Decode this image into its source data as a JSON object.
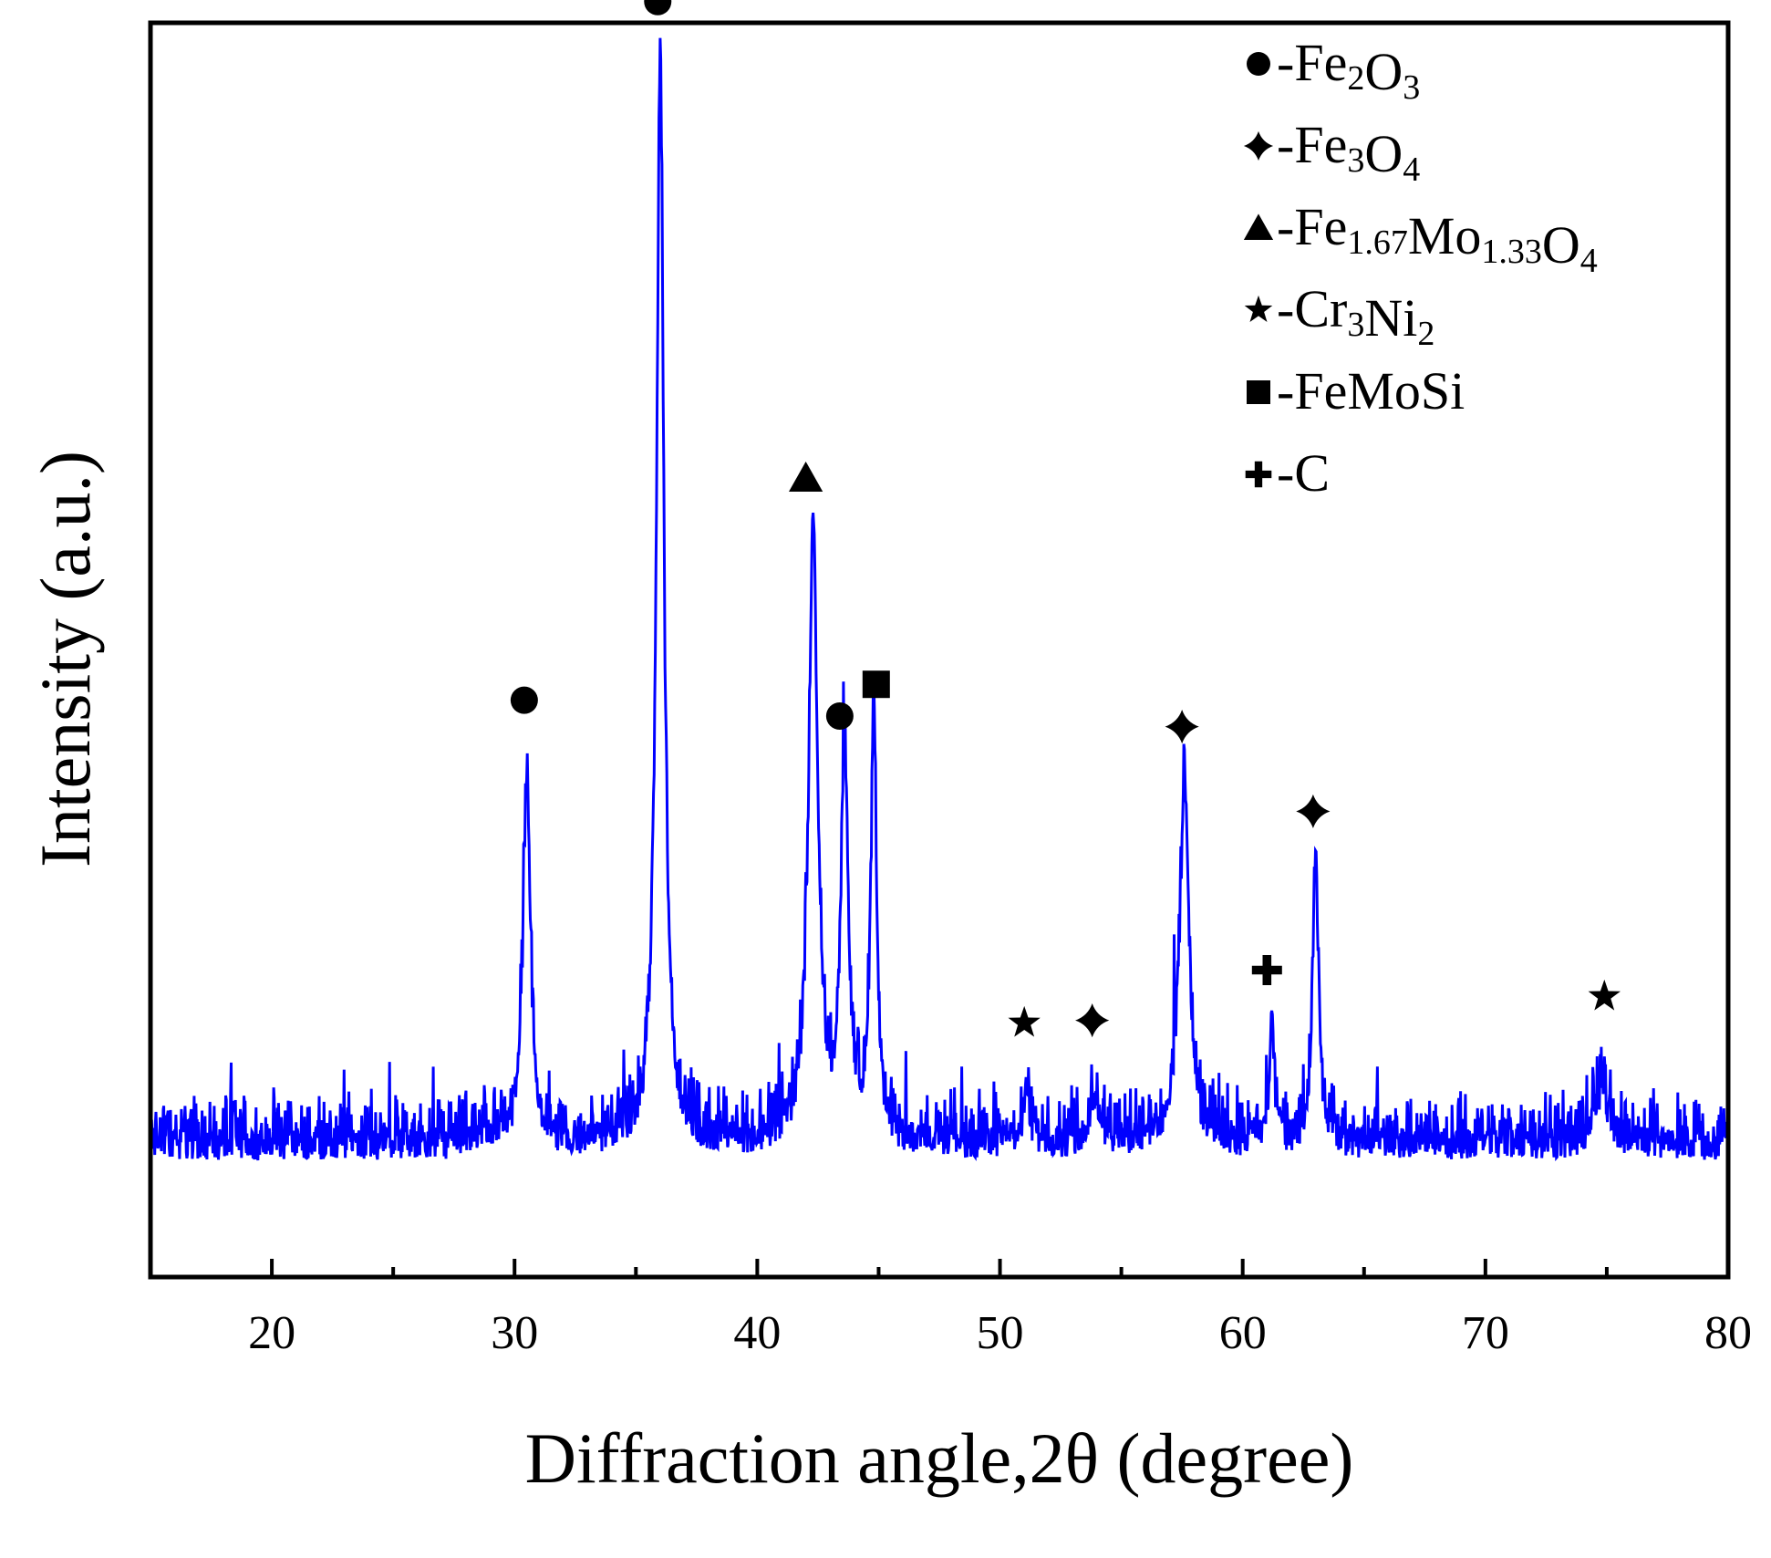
{
  "chart_data": {
    "type": "line",
    "title": "",
    "xlabel": "Diffraction angle,2θ (degree)",
    "ylabel": "Intensity (a.u.)",
    "xlim": [
      15,
      80
    ],
    "ylim": [
      -22,
      215
    ],
    "x_ticks": [
      20,
      30,
      40,
      50,
      60,
      70,
      80
    ],
    "y_ticks": [],
    "grid": false,
    "series_color": "#0000ff",
    "baseline": 10,
    "peaks": [
      {
        "x": 30.5,
        "y": 70,
        "w": 0.18
      },
      {
        "x": 36.0,
        "y": 206,
        "w": 0.18
      },
      {
        "x": 42.3,
        "y": 115,
        "w": 0.22
      },
      {
        "x": 43.6,
        "y": 72,
        "w": 0.18
      },
      {
        "x": 44.8,
        "y": 78,
        "w": 0.15
      },
      {
        "x": 51.1,
        "y": 8,
        "w": 0.15
      },
      {
        "x": 53.9,
        "y": 9,
        "w": 0.25
      },
      {
        "x": 57.6,
        "y": 70,
        "w": 0.22
      },
      {
        "x": 61.2,
        "y": 22,
        "w": 0.12
      },
      {
        "x": 63.0,
        "y": 54,
        "w": 0.15
      },
      {
        "x": 74.8,
        "y": 10,
        "w": 0.35
      }
    ],
    "annotations": [
      {
        "x": 30.4,
        "y": 87,
        "symbol": "circle"
      },
      {
        "x": 35.9,
        "y": 219,
        "symbol": "circle"
      },
      {
        "x": 42.0,
        "y": 129,
        "symbol": "triangle"
      },
      {
        "x": 43.4,
        "y": 84,
        "symbol": "circle"
      },
      {
        "x": 44.9,
        "y": 90,
        "symbol": "square"
      },
      {
        "x": 51.0,
        "y": 26,
        "symbol": "star"
      },
      {
        "x": 53.8,
        "y": 26.5,
        "symbol": "diamond"
      },
      {
        "x": 57.5,
        "y": 82,
        "symbol": "diamond"
      },
      {
        "x": 61.0,
        "y": 36,
        "symbol": "cross"
      },
      {
        "x": 62.9,
        "y": 66,
        "symbol": "diamond"
      },
      {
        "x": 74.9,
        "y": 31,
        "symbol": "star"
      }
    ],
    "legend_position": "top-right",
    "legend": [
      {
        "symbol": "circle",
        "prefix": "-",
        "parts": [
          {
            "t": "Fe",
            "s": false
          },
          {
            "t": "2",
            "s": true
          },
          {
            "t": "O",
            "s": false
          },
          {
            "t": "3",
            "s": true
          }
        ]
      },
      {
        "symbol": "diamond",
        "prefix": "-",
        "parts": [
          {
            "t": "Fe",
            "s": false
          },
          {
            "t": "3",
            "s": true
          },
          {
            "t": "O",
            "s": false
          },
          {
            "t": "4",
            "s": true
          }
        ]
      },
      {
        "symbol": "triangle",
        "prefix": "-",
        "parts": [
          {
            "t": "Fe",
            "s": false
          },
          {
            "t": "1.67",
            "s": true
          },
          {
            "t": "Mo",
            "s": false
          },
          {
            "t": "1.33",
            "s": true
          },
          {
            "t": "O",
            "s": false
          },
          {
            "t": "4",
            "s": true
          }
        ]
      },
      {
        "symbol": "star",
        "prefix": "-",
        "parts": [
          {
            "t": "Cr",
            "s": false
          },
          {
            "t": "3",
            "s": true
          },
          {
            "t": "Ni",
            "s": false
          },
          {
            "t": "2",
            "s": true
          }
        ]
      },
      {
        "symbol": "square",
        "prefix": "-",
        "parts": [
          {
            "t": "FeMoSi",
            "s": false
          }
        ]
      },
      {
        "symbol": "cross",
        "prefix": "-",
        "parts": [
          {
            "t": "C",
            "s": false
          }
        ]
      }
    ]
  }
}
